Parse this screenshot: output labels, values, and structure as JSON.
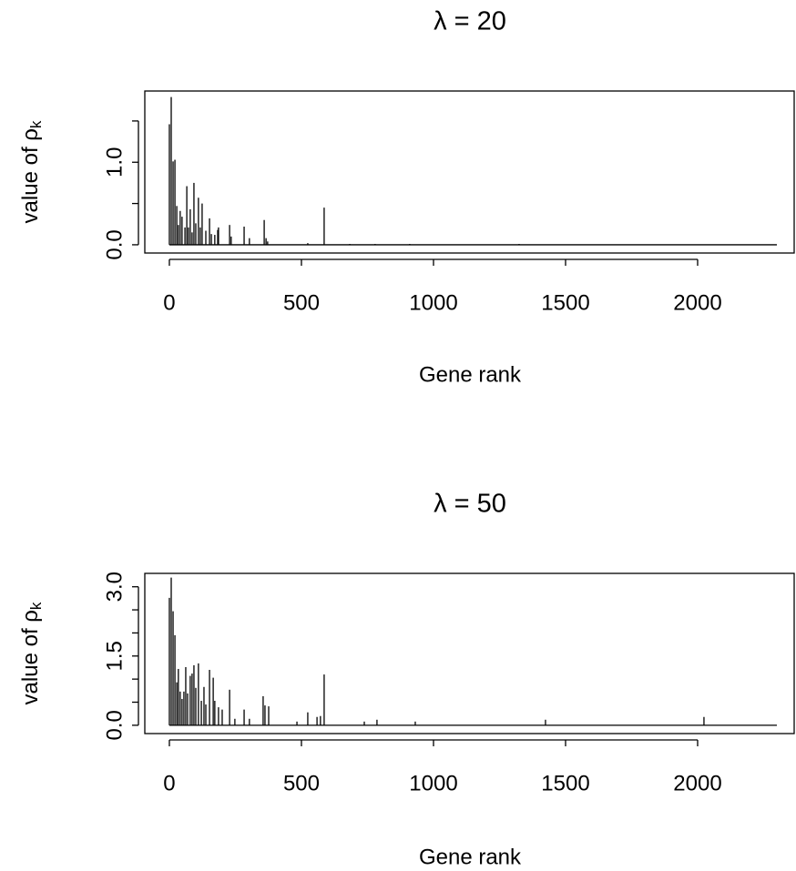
{
  "chart_data": [
    {
      "type": "bar",
      "title": "λ = 20",
      "xlabel": "Gene rank",
      "ylabel": "value of ρ",
      "ylabel_sub": "k",
      "color": "#000000",
      "x": [
        0,
        7,
        14,
        21,
        28,
        34,
        41,
        48,
        59,
        66,
        72,
        79,
        86,
        93,
        100,
        110,
        117,
        124,
        138,
        152,
        159,
        172,
        183,
        186,
        228,
        234,
        283,
        303,
        359,
        366,
        372,
        524,
        586,
        683,
        779,
        910,
        1324,
        2300
      ],
      "values": [
        1.46,
        1.79,
        1.01,
        1.03,
        0.47,
        0.24,
        0.41,
        0.34,
        0.21,
        0.71,
        0.21,
        0.43,
        0.15,
        0.75,
        0.26,
        0.57,
        0.21,
        0.5,
        0.17,
        0.32,
        0.13,
        0.12,
        0.18,
        0.21,
        0.24,
        0.1,
        0.22,
        0.08,
        0.3,
        0.08,
        0.04,
        0.02,
        0.45,
        0.01,
        0.01,
        0.01,
        0.01,
        0
      ],
      "xlim": [
        -93,
        2369
      ],
      "ylim": [
        -0.1,
        1.863
      ],
      "xticks": [
        0,
        500,
        1000,
        1500,
        2000
      ],
      "yticks": [
        {
          "value": 0,
          "label": "0.0"
        },
        {
          "value": 0.5,
          "label": null
        },
        {
          "value": 1,
          "label": "1.0"
        },
        {
          "value": 1.5,
          "label": null
        }
      ]
    },
    {
      "type": "bar",
      "title": "λ = 50",
      "xlabel": "Gene rank",
      "ylabel": "value of ρ",
      "ylabel_sub": "k",
      "color": "#000000",
      "x": [
        0,
        7,
        14,
        21,
        28,
        34,
        41,
        48,
        55,
        62,
        69,
        79,
        86,
        93,
        100,
        110,
        121,
        131,
        138,
        152,
        166,
        172,
        186,
        200,
        228,
        248,
        283,
        303,
        355,
        362,
        376,
        483,
        524,
        559,
        572,
        586,
        738,
        786,
        931,
        1424,
        2024,
        2300
      ],
      "values": [
        2.76,
        3.2,
        2.47,
        1.95,
        0.93,
        1.22,
        0.73,
        0.57,
        0.73,
        1.26,
        0.69,
        1.07,
        1.12,
        1.3,
        0.81,
        1.34,
        0.53,
        0.83,
        0.45,
        1.2,
        1.03,
        0.53,
        0.39,
        0.34,
        0.77,
        0.14,
        0.34,
        0.14,
        0.63,
        0.43,
        0.41,
        0.08,
        0.28,
        0.18,
        0.2,
        1.1,
        0.08,
        0.12,
        0.08,
        0.12,
        0.18,
        0
      ],
      "xlim": [
        -93,
        2369
      ],
      "ylim": [
        -0.18,
        3.29
      ],
      "xticks": [
        0,
        500,
        1000,
        1500,
        2000
      ],
      "yticks": [
        {
          "value": 0,
          "label": "0.0"
        },
        {
          "value": 0.5,
          "label": null
        },
        {
          "value": 1,
          "label": null
        },
        {
          "value": 1.5,
          "label": "1.5"
        },
        {
          "value": 2,
          "label": null
        },
        {
          "value": 2.5,
          "label": null
        },
        {
          "value": 3,
          "label": "3.0"
        }
      ]
    }
  ]
}
